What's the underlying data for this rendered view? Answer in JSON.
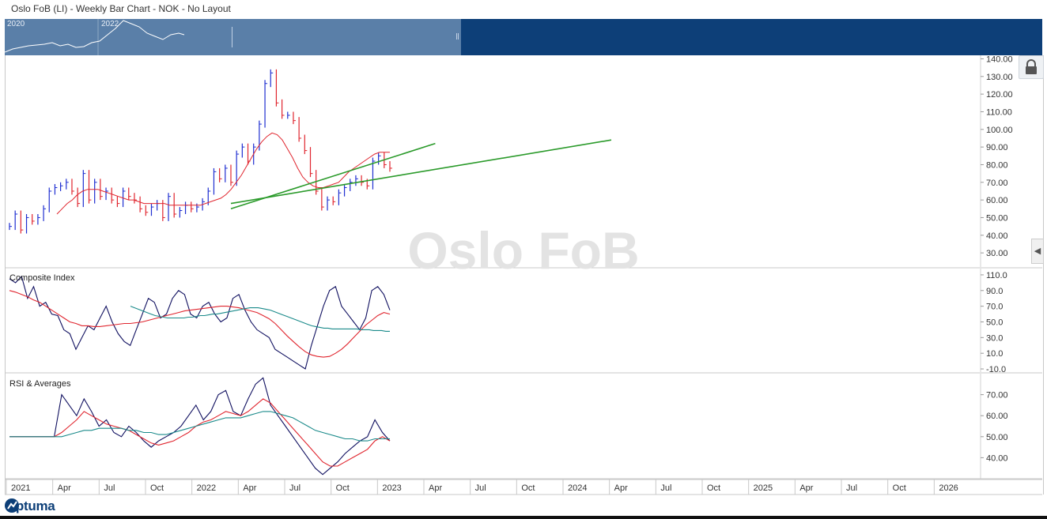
{
  "title": "Oslo FoB (LI) - Weekly Bar Chart - NOK - No Layout",
  "watermark": "Oslo FoB",
  "logo_text": "Optuma",
  "navigator": {
    "years": [
      "2020",
      "2022"
    ]
  },
  "colors": {
    "nav_bg": "#0d3f78",
    "nav_sel": "#5a7fa8",
    "up_bar": "#1f2fd1",
    "down_bar": "#e0252e",
    "trend": "#2a9a2a",
    "ma_red": "#e0252e",
    "ma_teal": "#1a8a8a",
    "ma_black": "#555555",
    "osc": "#101060"
  },
  "icons": {
    "lock": "lock-icon",
    "collapse": "chevron-left-icon",
    "logo": "optuma-logo-icon"
  },
  "chart_data": [
    {
      "type": "bar",
      "title": "",
      "ylim": [
        22,
        142
      ],
      "y_ticks": [
        "140.00",
        "130.00",
        "120.00",
        "110.00",
        "100.00",
        "90.00",
        "80.00",
        "70.00",
        "60.00",
        "50.00",
        "40.00",
        "30.00"
      ],
      "series": [
        {
          "values": [
            45,
            52,
            43,
            50,
            48,
            50,
            55,
            65,
            67,
            68,
            70,
            65,
            58,
            75,
            60,
            70,
            62,
            65,
            60,
            58,
            65,
            62,
            60,
            55,
            53,
            56,
            58,
            50,
            62,
            52,
            54,
            57,
            55,
            56,
            59,
            65,
            76,
            72,
            78,
            70,
            86,
            90,
            82,
            90,
            103,
            126,
            132,
            115,
            108,
            108,
            105,
            95,
            88,
            75,
            65,
            56,
            60,
            59,
            64,
            67,
            70,
            72,
            70,
            68,
            82,
            85,
            80,
            78
          ]
        }
      ],
      "moving_averages": [
        {
          "color": "red",
          "values": [
            52,
            55,
            58,
            60,
            63,
            65,
            66,
            66,
            66,
            65,
            64,
            63,
            62,
            61,
            60,
            60,
            59,
            58,
            58,
            58,
            58,
            58,
            57,
            57,
            57,
            57,
            57,
            57,
            57,
            58,
            59,
            60,
            61,
            63,
            66,
            70,
            74,
            79,
            84,
            89,
            93,
            96,
            98,
            97,
            94,
            89,
            84,
            78,
            73,
            70,
            68,
            67,
            67,
            68,
            69,
            70,
            73,
            76,
            78,
            80,
            82,
            84,
            86,
            87,
            87,
            87
          ]
        }
      ],
      "trend_lines": [
        {
          "start": [
            39,
            55
          ],
          "end": [
            75,
            92
          ]
        },
        {
          "start": [
            39,
            58
          ],
          "end": [
            106,
            94
          ]
        }
      ]
    },
    {
      "type": "line",
      "title": "Composite Index",
      "ylim": [
        -14,
        118
      ],
      "y_ticks": [
        "110.0",
        "90.0",
        "70.0",
        "50.0",
        "30.0",
        "10.0",
        "-10.0"
      ],
      "series": [
        {
          "values": [
            105,
            100,
            108,
            80,
            95,
            70,
            75,
            60,
            58,
            40,
            35,
            15,
            30,
            45,
            40,
            55,
            70,
            50,
            35,
            25,
            20,
            40,
            60,
            80,
            75,
            55,
            60,
            80,
            90,
            85,
            60,
            55,
            70,
            75,
            60,
            50,
            55,
            80,
            85,
            65,
            50,
            40,
            35,
            30,
            15,
            10,
            5,
            0,
            -5,
            -10,
            20,
            45,
            70,
            90,
            95,
            70,
            60,
            50,
            40,
            55,
            90,
            95,
            85,
            65
          ]
        },
        {
          "values": [
            90,
            88,
            85,
            82,
            78,
            75,
            70,
            65,
            60,
            55,
            50,
            48,
            45,
            45,
            44,
            44,
            45,
            46,
            47,
            48,
            48,
            49,
            50,
            52,
            54,
            56,
            58,
            60,
            62,
            64,
            65,
            66,
            67,
            68,
            69,
            70,
            70,
            69,
            68,
            66,
            64,
            62,
            58,
            54,
            48,
            40,
            32,
            25,
            18,
            12,
            8,
            6,
            5,
            6,
            10,
            15,
            22,
            30,
            38,
            46,
            52,
            58,
            62,
            60
          ]
        },
        {
          "values": [
            70,
            68,
            66,
            64,
            62,
            60,
            58,
            57,
            56,
            55,
            55,
            55,
            55,
            55,
            56,
            56,
            57,
            58,
            58,
            59,
            60,
            60,
            61,
            62,
            63,
            64,
            65,
            66,
            67,
            68,
            68,
            68,
            67,
            66,
            65,
            63,
            61,
            59,
            57,
            55,
            53,
            51,
            49,
            47,
            45,
            44,
            43,
            42,
            42,
            41,
            41,
            41,
            41,
            41,
            41,
            41,
            40,
            40,
            40,
            39,
            39,
            39,
            38,
            38
          ]
        }
      ]
    },
    {
      "type": "line",
      "title": "RSI & Averages",
      "ylim": [
        30,
        80
      ],
      "y_ticks": [
        "70.00",
        "60.00",
        "50.00",
        "40.00"
      ],
      "series": [
        {
          "values": [
            50,
            50,
            50,
            50,
            50,
            50,
            50,
            70,
            65,
            60,
            68,
            62,
            55,
            58,
            52,
            50,
            55,
            52,
            48,
            45,
            48,
            50,
            52,
            55,
            60,
            65,
            58,
            62,
            70,
            72,
            62,
            60,
            68,
            75,
            78,
            65,
            60,
            55,
            50,
            45,
            40,
            35,
            32,
            35,
            38,
            42,
            45,
            48,
            50,
            58,
            52,
            48
          ]
        },
        {
          "values": [
            50,
            50,
            50,
            50,
            50,
            50,
            50,
            52,
            55,
            58,
            62,
            60,
            58,
            56,
            55,
            54,
            53,
            51,
            49,
            47,
            46,
            47,
            48,
            50,
            52,
            55,
            57,
            58,
            60,
            62,
            61,
            60,
            62,
            65,
            68,
            66,
            62,
            58,
            54,
            50,
            46,
            42,
            38,
            36,
            36,
            38,
            40,
            42,
            44,
            48,
            50,
            48
          ]
        },
        {
          "values": [
            50,
            50,
            50,
            50,
            50,
            50,
            50,
            50,
            51,
            52,
            53,
            53,
            54,
            54,
            54,
            54,
            53,
            53,
            52,
            52,
            51,
            51,
            52,
            53,
            54,
            55,
            56,
            57,
            58,
            59,
            59,
            59,
            60,
            61,
            62,
            62,
            61,
            60,
            59,
            57,
            55,
            53,
            52,
            51,
            50,
            49,
            49,
            48,
            48,
            49,
            49,
            49
          ]
        }
      ]
    }
  ],
  "x_axis": {
    "labels": [
      "2021",
      "Apr",
      "Jul",
      "Oct",
      "2022",
      "Apr",
      "Jul",
      "Oct",
      "2023",
      "Apr",
      "Jul",
      "Oct",
      "2024",
      "Apr",
      "Jul",
      "Oct",
      "2025",
      "Apr",
      "Jul",
      "Oct",
      "2026"
    ]
  }
}
